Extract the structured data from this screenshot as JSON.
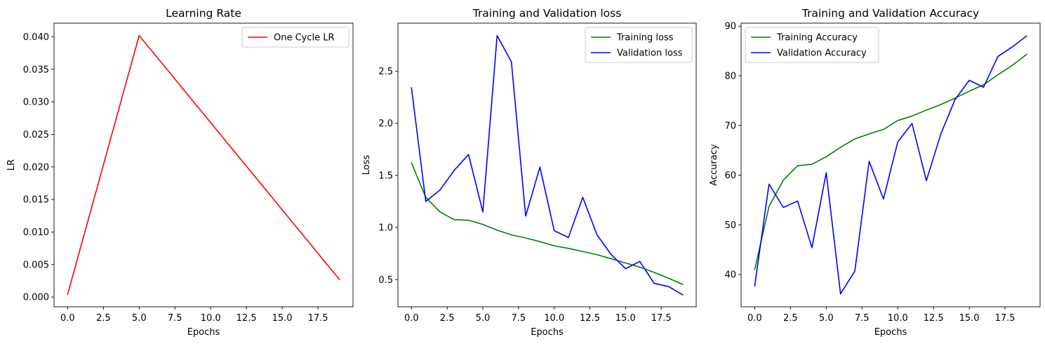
{
  "chart_data": [
    {
      "type": "line",
      "title": "Learning Rate",
      "xlabel": "Epochs",
      "ylabel": "LR",
      "xlim": [
        -0.95,
        19.95
      ],
      "ylim": [
        -0.0015,
        0.0421
      ],
      "xticks": [
        0.0,
        2.5,
        5.0,
        7.5,
        10.0,
        12.5,
        15.0,
        17.5
      ],
      "xtick_labels": [
        "0.0",
        "2.5",
        "5.0",
        "7.5",
        "10.0",
        "12.5",
        "15.0",
        "17.5"
      ],
      "yticks": [
        0.0,
        0.005,
        0.01,
        0.015,
        0.02,
        0.025,
        0.03,
        0.035,
        0.04
      ],
      "ytick_labels": [
        "0.000",
        "0.005",
        "0.010",
        "0.015",
        "0.020",
        "0.025",
        "0.030",
        "0.035",
        "0.040"
      ],
      "legend_position": "top-right",
      "grid": false,
      "series": [
        {
          "name": "One Cycle LR",
          "color": "#ff0000",
          "x": [
            0,
            5,
            19
          ],
          "y": [
            0.0004,
            0.0402,
            0.0027
          ]
        }
      ]
    },
    {
      "type": "line",
      "title": "Training and Validation loss",
      "xlabel": "Epochs",
      "ylabel": "Loss",
      "xlim": [
        -0.95,
        19.95
      ],
      "ylim": [
        0.24,
        2.96
      ],
      "xticks": [
        0.0,
        2.5,
        5.0,
        7.5,
        10.0,
        12.5,
        15.0,
        17.5
      ],
      "xtick_labels": [
        "0.0",
        "2.5",
        "5.0",
        "7.5",
        "10.0",
        "12.5",
        "15.0",
        "17.5"
      ],
      "yticks": [
        0.5,
        1.0,
        1.5,
        2.0,
        2.5
      ],
      "ytick_labels": [
        "0.5",
        "1.0",
        "1.5",
        "2.0",
        "2.5"
      ],
      "legend_position": "top-right",
      "grid": false,
      "series": [
        {
          "name": "Training loss",
          "color": "#008000",
          "x": [
            0,
            1,
            2,
            3,
            4,
            5,
            6,
            7,
            8,
            9,
            10,
            11,
            12,
            13,
            14,
            15,
            16,
            17,
            18,
            19
          ],
          "y": [
            1.62,
            1.29,
            1.15,
            1.075,
            1.07,
            1.03,
            0.975,
            0.93,
            0.9,
            0.865,
            0.825,
            0.8,
            0.77,
            0.74,
            0.7,
            0.66,
            0.62,
            0.57,
            0.515,
            0.455
          ]
        },
        {
          "name": "Validation loss",
          "color": "#0000ff",
          "x": [
            0,
            1,
            2,
            3,
            4,
            5,
            6,
            7,
            8,
            9,
            10,
            11,
            12,
            13,
            14,
            15,
            16,
            17,
            18,
            19
          ],
          "y": [
            2.34,
            1.25,
            1.36,
            1.55,
            1.7,
            1.15,
            2.84,
            2.59,
            1.11,
            1.58,
            0.97,
            0.905,
            1.29,
            0.93,
            0.74,
            0.605,
            0.675,
            0.465,
            0.435,
            0.355
          ]
        }
      ]
    },
    {
      "type": "line",
      "title": "Training and Validation Accuracy",
      "xlabel": "Epochs",
      "ylabel": "Accuracy",
      "xlim": [
        -0.95,
        19.95
      ],
      "ylim": [
        33.5,
        90.6
      ],
      "xticks": [
        0.0,
        2.5,
        5.0,
        7.5,
        10.0,
        12.5,
        15.0,
        17.5
      ],
      "xtick_labels": [
        "0.0",
        "2.5",
        "5.0",
        "7.5",
        "10.0",
        "12.5",
        "15.0",
        "17.5"
      ],
      "yticks": [
        40,
        50,
        60,
        70,
        80,
        90
      ],
      "ytick_labels": [
        "40",
        "50",
        "60",
        "70",
        "80",
        "90"
      ],
      "legend_position": "top-left",
      "grid": false,
      "series": [
        {
          "name": "Training Accuracy",
          "color": "#008000",
          "x": [
            0,
            1,
            2,
            3,
            4,
            5,
            6,
            7,
            8,
            9,
            10,
            11,
            12,
            13,
            14,
            15,
            16,
            17,
            18,
            19
          ],
          "y": [
            41.0,
            53.7,
            59.0,
            61.9,
            62.2,
            63.7,
            65.6,
            67.3,
            68.3,
            69.2,
            71.0,
            71.9,
            73.1,
            74.2,
            75.5,
            76.9,
            78.2,
            80.2,
            82.1,
            84.3
          ]
        },
        {
          "name": "Validation Accuracy",
          "color": "#0000ff",
          "x": [
            0,
            1,
            2,
            3,
            4,
            5,
            6,
            7,
            8,
            9,
            10,
            11,
            12,
            13,
            14,
            15,
            16,
            17,
            18,
            19
          ],
          "y": [
            37.7,
            58.2,
            53.5,
            54.8,
            45.4,
            60.5,
            36.1,
            40.7,
            62.8,
            55.2,
            66.7,
            70.4,
            58.9,
            68.2,
            75.2,
            79.1,
            77.7,
            83.9,
            85.8,
            88.0
          ]
        }
      ]
    }
  ]
}
